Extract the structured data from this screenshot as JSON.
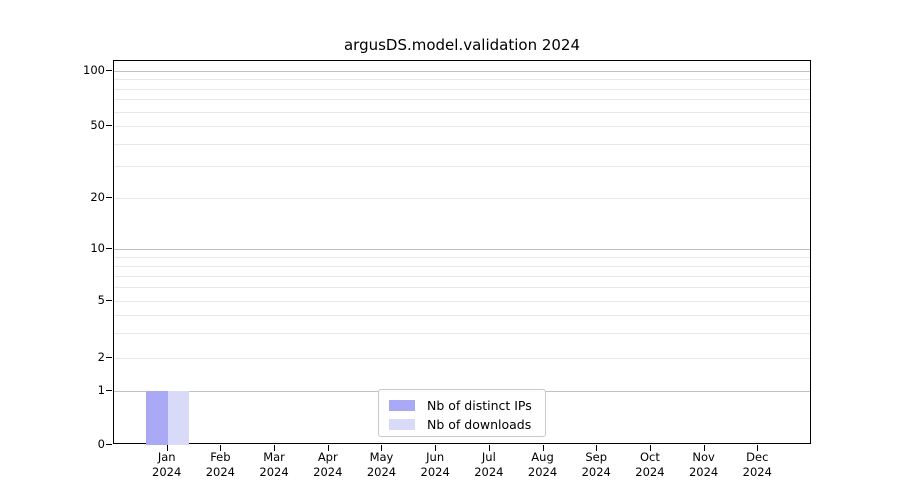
{
  "chart_data": {
    "type": "bar",
    "title": "argusDS.model.validation 2024",
    "x_axis": {
      "months": [
        "Jan",
        "Feb",
        "Mar",
        "Apr",
        "May",
        "Jun",
        "Jul",
        "Aug",
        "Sep",
        "Oct",
        "Nov",
        "Dec"
      ],
      "year": "2024"
    },
    "y_axis": {
      "scale": "symlog",
      "ticks": [
        {
          "label": "100",
          "value": 100,
          "major": true
        },
        {
          "label": "50",
          "value": 50,
          "major": false
        },
        {
          "label": "20",
          "value": 20,
          "major": false
        },
        {
          "label": "10",
          "value": 10,
          "major": true
        },
        {
          "label": "5",
          "value": 5,
          "major": false
        },
        {
          "label": "2",
          "value": 2,
          "major": false
        },
        {
          "label": "1",
          "value": 1,
          "major": true
        },
        {
          "label": "0",
          "value": 0,
          "major": false
        }
      ],
      "ylim": [
        0,
        150
      ],
      "grid": "on"
    },
    "series": [
      {
        "name": "Nb of distinct IPs",
        "color": "#a9a9f6",
        "values": [
          1,
          0,
          0,
          0,
          0,
          0,
          0,
          0,
          0,
          0,
          0,
          0
        ]
      },
      {
        "name": "Nb of downloads",
        "color": "#d9d9f8",
        "values": [
          1,
          0,
          0,
          0,
          0,
          0,
          0,
          0,
          0,
          0,
          0,
          0
        ]
      }
    ],
    "legend_position": "lower center"
  }
}
